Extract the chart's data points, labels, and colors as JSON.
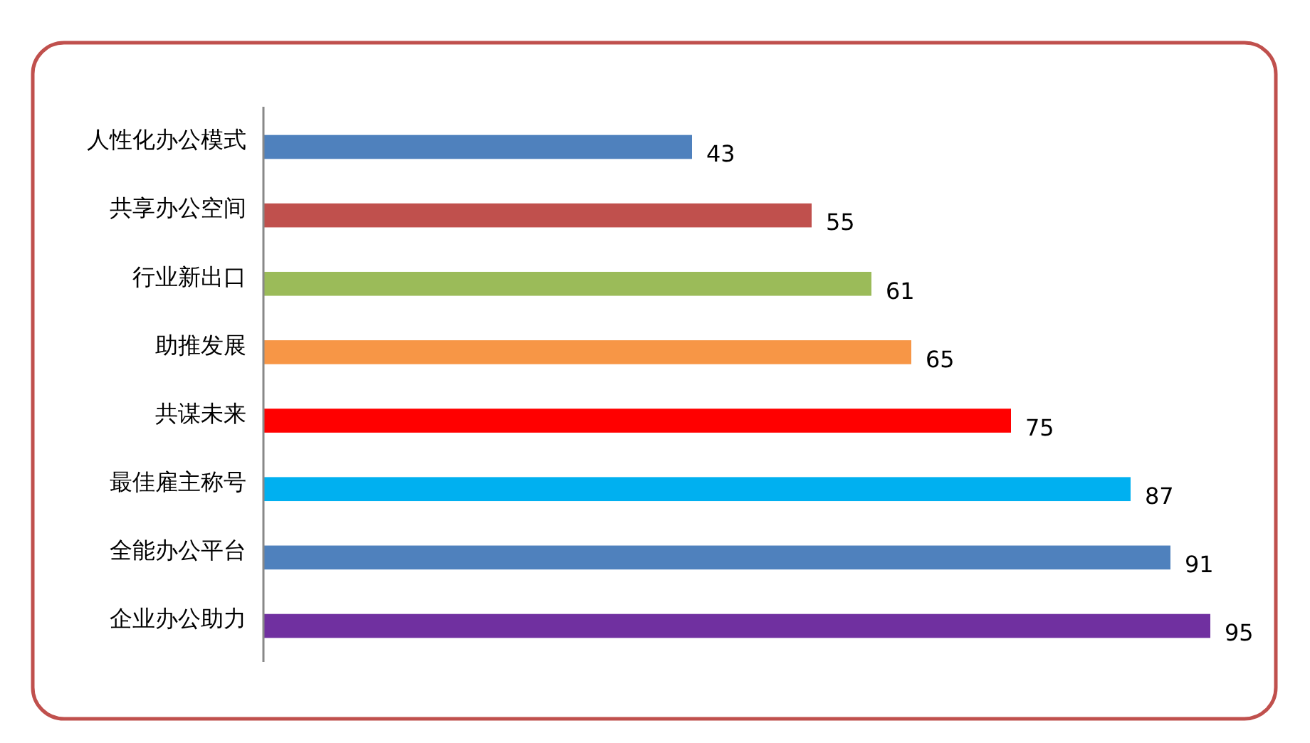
{
  "chart_data": {
    "type": "bar",
    "orientation": "horizontal",
    "categories": [
      "人性化办公模式",
      "共享办公空间",
      "行业新出口",
      "助推发展",
      "共谋未来",
      "最佳雇主称号",
      "全能办公平台",
      "企业办公助力"
    ],
    "values": [
      43,
      55,
      61,
      65,
      75,
      87,
      91,
      95
    ],
    "colors": [
      "#4f81bd",
      "#c0504d",
      "#9bbb59",
      "#f79646",
      "#ff0000",
      "#00b0f0",
      "#4f81bd",
      "#7030a0"
    ],
    "data_labels": true
  }
}
